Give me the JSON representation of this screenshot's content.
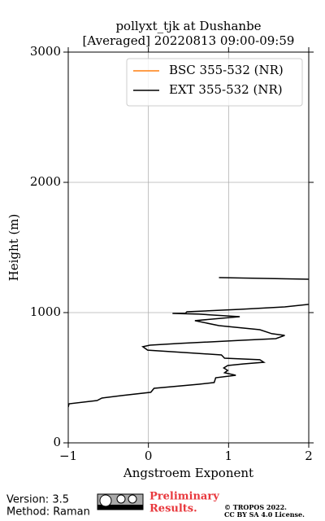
{
  "chart_data": {
    "type": "line",
    "title": [
      "pollyxt_tjk at Dushanbe",
      "[Averaged] 20220813 09:00-09:59"
    ],
    "xlabel": "Angstroem Exponent",
    "ylabel": "Height (m)",
    "xlim": [
      -1,
      2
    ],
    "xticks": [
      {
        "value": -1,
        "label": "−1"
      },
      0,
      1,
      2
    ],
    "ylim": [
      0,
      3000
    ],
    "yticks": [
      0,
      1000,
      2000,
      3000
    ],
    "grid": true,
    "legend": "upper right",
    "series": [
      {
        "name": "BSC 355-532 (NR)",
        "color": "#ff7f0e",
        "x": [],
        "y": []
      },
      {
        "name": "EXT 355-532 (NR)",
        "color": "#000000",
        "x": [
          0.88,
          2.0,
          null,
          2.0,
          1.7,
          1.14,
          0.48,
          0.46,
          0.3,
          0.63,
          1.14,
          0.58,
          0.88,
          1.39,
          1.54,
          1.7,
          1.59,
          1.19,
          0.38,
          0.02,
          -0.07,
          -0.01,
          0.58,
          0.91,
          0.95,
          1.39,
          1.44,
          1.19,
          0.99,
          0.94,
          0.99,
          0.95,
          1.09,
          0.84,
          0.82,
          0.63,
          0.07,
          0.03,
          -0.33,
          -0.58,
          -0.64,
          -0.99,
          -1.0
        ],
        "y": [
          1269,
          1256,
          null,
          1063,
          1044,
          1025,
          1006,
          994,
          994,
          988,
          969,
          938,
          900,
          869,
          838,
          825,
          800,
          788,
          763,
          750,
          738,
          712,
          688,
          675,
          650,
          638,
          619,
          606,
          594,
          575,
          556,
          538,
          519,
          500,
          463,
          450,
          419,
          388,
          363,
          344,
          325,
          300,
          275
        ]
      }
    ]
  },
  "footer": {
    "version": "Version: 3.5",
    "method": "Method: Raman",
    "status": [
      "Preliminary",
      "Results."
    ],
    "copyright": [
      "© TROPOS 2022.",
      "CC BY SA 4.0 License."
    ]
  }
}
